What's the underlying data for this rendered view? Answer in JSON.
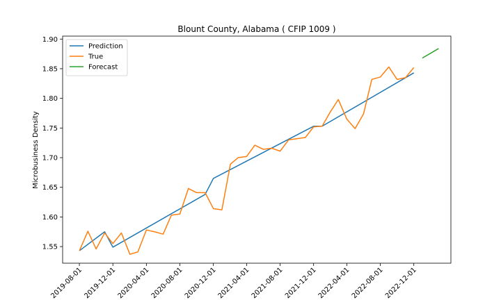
{
  "chart_data": {
    "type": "line",
    "title": "Blount County, Alabama ( CFIP 1009 )",
    "xlabel": "",
    "ylabel": "Microbusiness Density",
    "x_ticks": [
      "2019-08-01",
      "2019-12-01",
      "2020-04-01",
      "2020-08-01",
      "2020-12-01",
      "2021-04-01",
      "2021-08-01",
      "2021-12-01",
      "2022-04-01",
      "2022-08-01",
      "2022-12-01"
    ],
    "y_ticks": [
      "1.55",
      "1.60",
      "1.65",
      "1.70",
      "1.75",
      "1.80",
      "1.85",
      "1.90"
    ],
    "xlim": [
      "2019-06-01",
      "2023-04-15"
    ],
    "ylim": [
      1.522,
      1.905
    ],
    "legend_position": "top-left",
    "grid": false,
    "series": [
      {
        "name": "Prediction",
        "color": "#1f77b4",
        "points": [
          [
            "2019-08-01",
            1.543
          ],
          [
            "2019-11-01",
            1.575
          ],
          [
            "2019-12-01",
            1.549
          ],
          [
            "2020-11-01",
            1.638
          ],
          [
            "2020-12-01",
            1.665
          ],
          [
            "2021-12-01",
            1.753
          ],
          [
            "2022-01-01",
            1.753
          ],
          [
            "2022-12-01",
            1.843
          ]
        ]
      },
      {
        "name": "True",
        "color": "#ff7f0e",
        "points": [
          [
            "2019-08-01",
            1.543
          ],
          [
            "2019-09-01",
            1.576
          ],
          [
            "2019-10-01",
            1.546
          ],
          [
            "2019-11-01",
            1.573
          ],
          [
            "2019-12-01",
            1.555
          ],
          [
            "2020-01-01",
            1.573
          ],
          [
            "2020-02-01",
            1.537
          ],
          [
            "2020-03-01",
            1.541
          ],
          [
            "2020-04-01",
            1.578
          ],
          [
            "2020-05-01",
            1.575
          ],
          [
            "2020-06-01",
            1.571
          ],
          [
            "2020-07-01",
            1.603
          ],
          [
            "2020-08-01",
            1.605
          ],
          [
            "2020-09-01",
            1.648
          ],
          [
            "2020-10-01",
            1.641
          ],
          [
            "2020-11-01",
            1.641
          ],
          [
            "2020-12-01",
            1.614
          ],
          [
            "2021-01-01",
            1.612
          ],
          [
            "2021-02-01",
            1.689
          ],
          [
            "2021-03-01",
            1.7
          ],
          [
            "2021-04-01",
            1.702
          ],
          [
            "2021-05-01",
            1.721
          ],
          [
            "2021-06-01",
            1.714
          ],
          [
            "2021-07-01",
            1.716
          ],
          [
            "2021-08-01",
            1.711
          ],
          [
            "2021-09-01",
            1.73
          ],
          [
            "2021-10-01",
            1.732
          ],
          [
            "2021-11-01",
            1.734
          ],
          [
            "2021-12-01",
            1.752
          ],
          [
            "2022-01-01",
            1.753
          ],
          [
            "2022-02-01",
            1.778
          ],
          [
            "2022-03-01",
            1.798
          ],
          [
            "2022-04-01",
            1.765
          ],
          [
            "2022-05-01",
            1.749
          ],
          [
            "2022-06-01",
            1.774
          ],
          [
            "2022-07-01",
            1.832
          ],
          [
            "2022-08-01",
            1.836
          ],
          [
            "2022-09-01",
            1.853
          ],
          [
            "2022-10-01",
            1.832
          ],
          [
            "2022-11-01",
            1.835
          ],
          [
            "2022-12-01",
            1.852
          ]
        ]
      },
      {
        "name": "Forecast",
        "color": "#2ca02c",
        "points": [
          [
            "2023-01-01",
            1.868
          ],
          [
            "2023-03-01",
            1.884
          ]
        ]
      }
    ]
  }
}
